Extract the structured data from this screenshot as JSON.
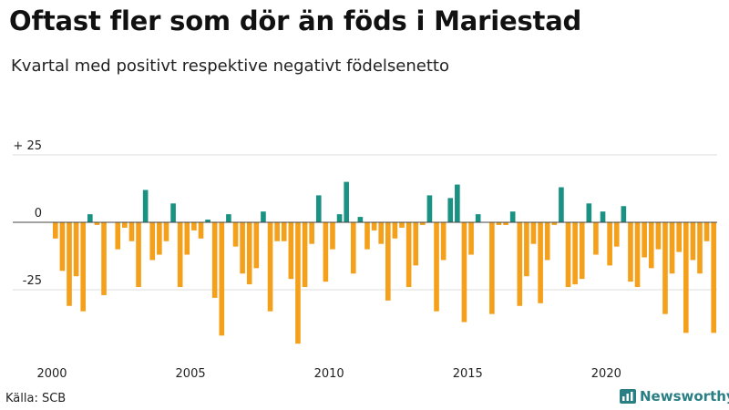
{
  "title": "Oftast fler som dör än föds i Mariestad",
  "subtitle": "Kvartal med positivt respektive negativt födelsenetto",
  "source": "Källa: SCB",
  "brand": "Newsworthy",
  "colors": {
    "positive": "#1a9283",
    "negative": "#f5a01a",
    "brand": "#2a7f84",
    "grid": "#dddddd"
  },
  "chart_data": {
    "type": "bar",
    "title": "Oftast fler som dör än föds i Mariestad",
    "subtitle": "Kvartal med positivt respektive negativt födelsenetto",
    "xlabel": "",
    "ylabel": "",
    "ylim": [
      -47,
      25
    ],
    "y_ticks": [
      {
        "value": 25,
        "label": "+ 25"
      },
      {
        "value": 0,
        "label": "0"
      },
      {
        "value": -25,
        "label": "-25"
      }
    ],
    "x_ticks": [
      {
        "index": 0,
        "label": "2000"
      },
      {
        "index": 20,
        "label": "2005"
      },
      {
        "index": 40,
        "label": "2010"
      },
      {
        "index": 60,
        "label": "2015"
      },
      {
        "index": 80,
        "label": "2020"
      }
    ],
    "start": "2000 Q1",
    "values": [
      -6,
      -18,
      -31,
      -20,
      -33,
      3,
      -1,
      -27,
      0,
      -10,
      -2,
      -7,
      -24,
      12,
      -14,
      -12,
      -7,
      7,
      -24,
      -12,
      -3,
      -6,
      1,
      -28,
      -42,
      3,
      -9,
      -19,
      -23,
      -17,
      4,
      -33,
      -7,
      -7,
      -21,
      -45,
      -24,
      -8,
      10,
      -22,
      -10,
      3,
      15,
      -19,
      2,
      -10,
      -3,
      -8,
      -29,
      -6,
      -2,
      -24,
      -16,
      -1,
      10,
      -33,
      -14,
      9,
      14,
      -37,
      -12,
      3,
      0,
      -34,
      -1,
      -1,
      4,
      -31,
      -20,
      -8,
      -30,
      -14,
      -1,
      13,
      -24,
      -23,
      -21,
      7,
      -12,
      4,
      -16,
      -9,
      6,
      -22,
      -24,
      -13,
      -17,
      -10,
      -34,
      -19,
      -11,
      -41,
      -14,
      -19,
      -7,
      -41
    ]
  }
}
